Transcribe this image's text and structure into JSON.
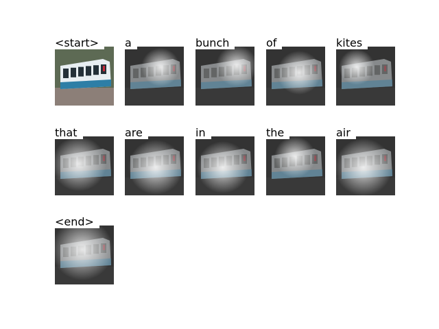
{
  "words": [
    "<start>",
    "a",
    "bunch",
    "of",
    "kites",
    "that",
    "are",
    "in",
    "the",
    "air",
    "<end>"
  ]
}
